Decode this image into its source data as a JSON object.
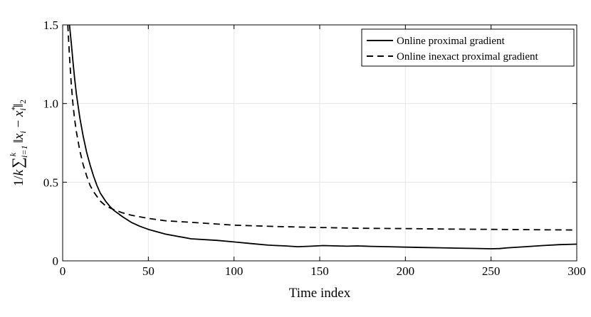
{
  "chart_data": {
    "type": "line",
    "xlabel": "Time index",
    "ylabel_parts": {
      "prefix": "1/",
      "k1": "k",
      "sum": "∑",
      "sup": "k",
      "sub": "i=1",
      "norm_open": "‖",
      "x": "x",
      "sub_i": "i",
      "minus": " − ",
      "x2": "x",
      "star": "*",
      "sub_i2": "i",
      "norm_close": "‖",
      "two": "2"
    },
    "xlim": [
      0,
      300
    ],
    "ylim": [
      0,
      1.5
    ],
    "xticks": [
      0,
      50,
      100,
      150,
      200,
      250,
      300
    ],
    "xtick_labels": [
      "0",
      "50",
      "100",
      "150",
      "200",
      "250",
      "300"
    ],
    "yticks": [
      0,
      0.5,
      1.0,
      1.5
    ],
    "ytick_labels": [
      "0",
      "0.5",
      "1.0",
      "1.5"
    ],
    "grid": true,
    "legend_position": "top-right",
    "series": [
      {
        "name": "Online proximal gradient",
        "style": "solid",
        "color": "#000000",
        "x": [
          4,
          5,
          6,
          7,
          8,
          10,
          12,
          14,
          16,
          18,
          20,
          22,
          25,
          28,
          30,
          35,
          40,
          45,
          50,
          60,
          75,
          90,
          100,
          110,
          120,
          130,
          137,
          145,
          152,
          160,
          166,
          172,
          180,
          190,
          200,
          210,
          220,
          230,
          240,
          250,
          255,
          260,
          270,
          280,
          290,
          300
        ],
        "y": [
          1.5,
          1.39,
          1.27,
          1.16,
          1.06,
          0.91,
          0.79,
          0.69,
          0.61,
          0.54,
          0.48,
          0.43,
          0.38,
          0.34,
          0.32,
          0.28,
          0.245,
          0.22,
          0.2,
          0.17,
          0.14,
          0.13,
          0.12,
          0.11,
          0.1,
          0.095,
          0.09,
          0.093,
          0.097,
          0.095,
          0.093,
          0.095,
          0.092,
          0.09,
          0.087,
          0.085,
          0.083,
          0.081,
          0.079,
          0.077,
          0.078,
          0.083,
          0.09,
          0.097,
          0.103,
          0.106
        ]
      },
      {
        "name": "Online inexact proximal gradient",
        "style": "dashed",
        "color": "#000000",
        "x": [
          3,
          4,
          5,
          6,
          7,
          8,
          10,
          12,
          14,
          16,
          18,
          20,
          22,
          25,
          28,
          30,
          35,
          40,
          50,
          60,
          75,
          100,
          125,
          150,
          175,
          200,
          225,
          250,
          275,
          300
        ],
        "y": [
          1.5,
          1.3,
          1.13,
          1.0,
          0.9,
          0.82,
          0.7,
          0.61,
          0.54,
          0.48,
          0.44,
          0.41,
          0.38,
          0.35,
          0.335,
          0.325,
          0.305,
          0.29,
          0.27,
          0.255,
          0.245,
          0.227,
          0.218,
          0.212,
          0.207,
          0.205,
          0.202,
          0.2,
          0.198,
          0.196
        ]
      }
    ]
  }
}
